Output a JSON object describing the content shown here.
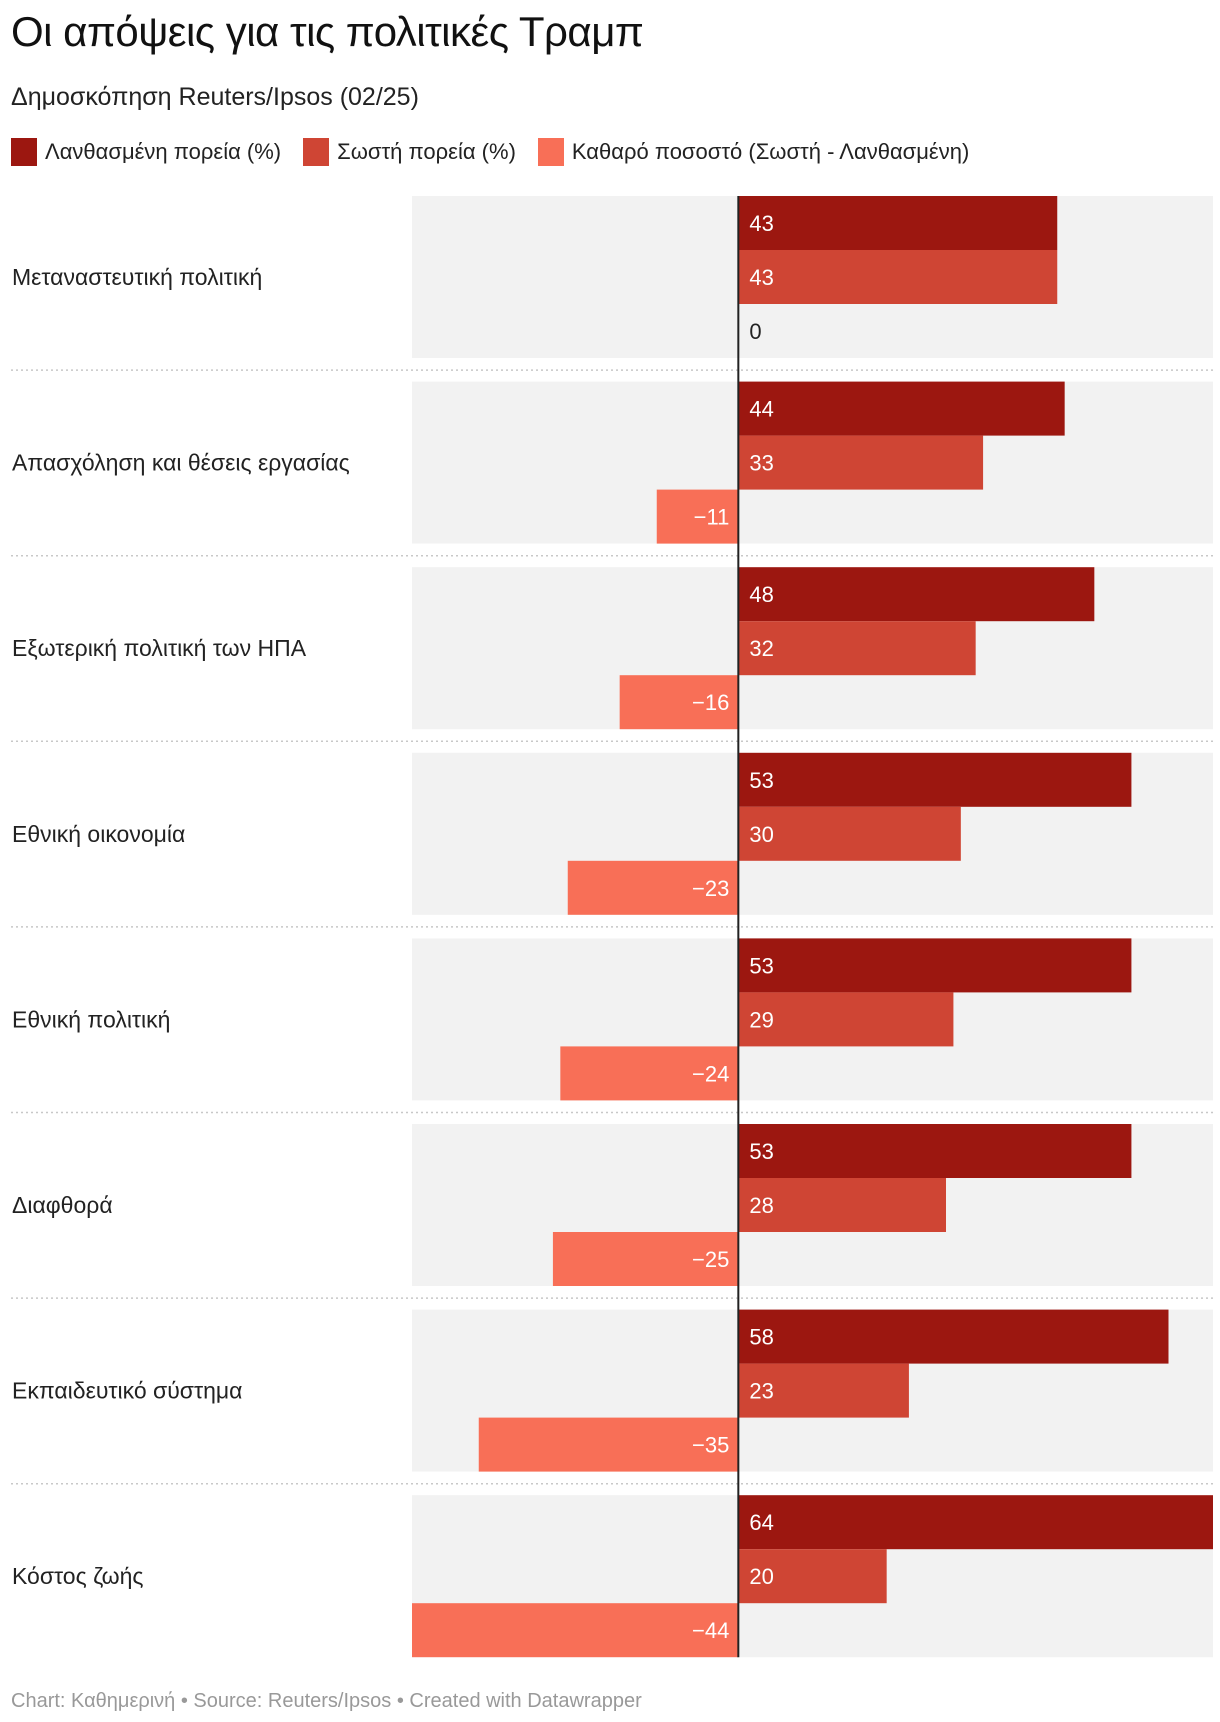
{
  "title": "Οι απόψεις για τις πολιτικές Τραμπ",
  "subtitle": "Δημοσκόπηση Reuters/Ipsos (02/25)",
  "legend": [
    {
      "label": "Λανθασμένη πορεία (%)",
      "color": "#9c1710"
    },
    {
      "label": "Σωστή πορεία (%)",
      "color": "#cf4534"
    },
    {
      "label": "Καθαρό ποσοστό (Σωστή - Λανθασμένη)",
      "color": "#f86f57"
    }
  ],
  "footer": "Chart: Καθημερινή • Source: Reuters/Ipsos • Created with Datawrapper",
  "chart_data": {
    "type": "bar",
    "orientation": "horizontal",
    "xlim": [
      -44,
      64
    ],
    "categories": [
      "Μεταναστευτική πολιτική",
      "Απασχόληση και θέσεις εργασίας",
      "Εξωτερική πολιτική των ΗΠΑ",
      "Εθνική οικονομία",
      "Εθνική πολιτική",
      "Διαφθορά",
      "Εκπαιδευτικό σύστημα",
      "Κόστος ζωής"
    ],
    "series": [
      {
        "name": "Λανθασμένη πορεία (%)",
        "color": "#9c1710",
        "values": [
          43,
          44,
          48,
          53,
          53,
          53,
          58,
          64
        ]
      },
      {
        "name": "Σωστή πορεία (%)",
        "color": "#cf4534",
        "values": [
          43,
          33,
          32,
          30,
          29,
          28,
          23,
          20
        ]
      },
      {
        "name": "Καθαρό ποσοστό (Σωστή - Λανθασμένη)",
        "color": "#f86f57",
        "values": [
          0,
          -11,
          -16,
          -23,
          -24,
          -25,
          -35,
          -44
        ]
      }
    ]
  }
}
